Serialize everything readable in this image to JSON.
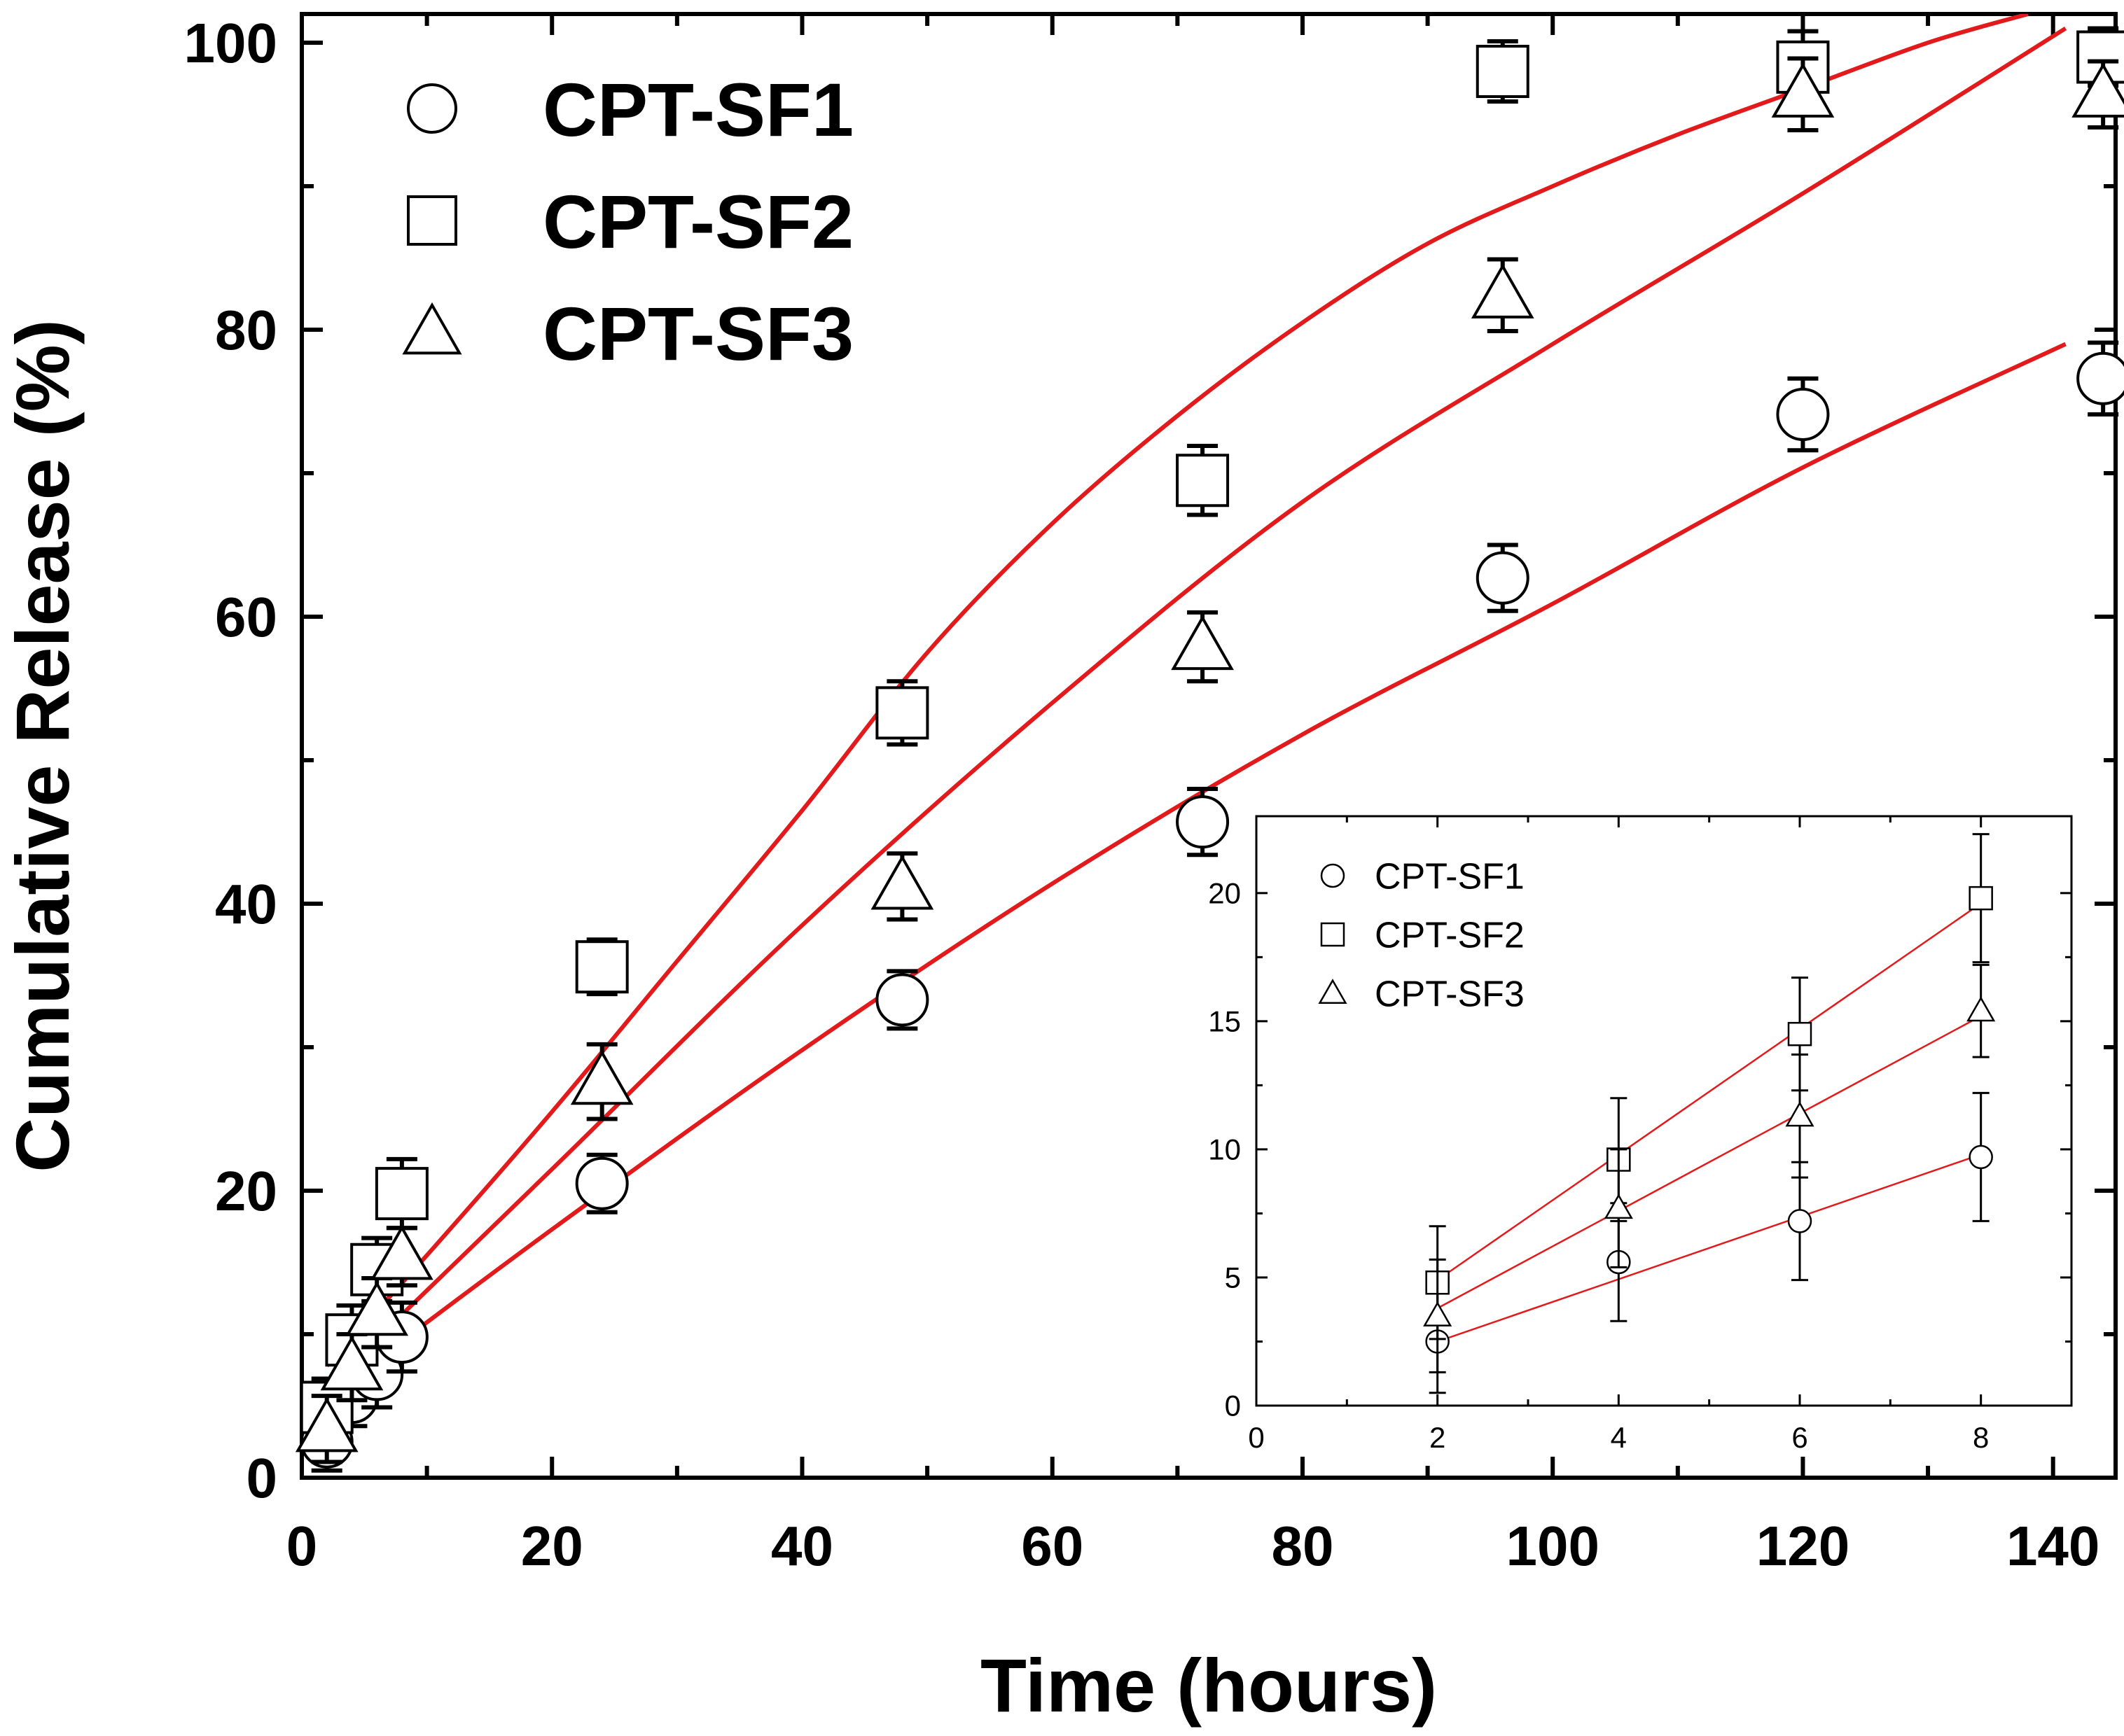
{
  "chart_data": [
    {
      "type": "scatter",
      "role": "main",
      "title": "",
      "xlabel": "Time (hours)",
      "ylabel": "Cumulative Release (%)",
      "xlim": [
        0,
        145
      ],
      "ylim": [
        0,
        102
      ],
      "xticks": [
        "0",
        "20",
        "40",
        "60",
        "80",
        "100",
        "120",
        "140"
      ],
      "yticks": [
        "0",
        "20",
        "40",
        "60",
        "80",
        "100"
      ],
      "xtick_values": [
        0,
        20,
        40,
        60,
        80,
        100,
        120,
        140
      ],
      "ytick_values": [
        0,
        20,
        40,
        60,
        80,
        100
      ],
      "legend_position": "top-left",
      "fit_line_color": "#e31a1c",
      "series": [
        {
          "name": "CPT-SF1",
          "marker": "circle",
          "x": [
            2,
            4,
            6,
            8,
            24,
            48,
            72,
            96,
            120,
            144
          ],
          "y": [
            2.5,
            5.6,
            7.2,
            9.8,
            20.5,
            33.3,
            45.7,
            62.7,
            74.1,
            76.6
          ],
          "err": [
            2,
            2,
            2.3,
            2.4,
            2,
            2,
            2.3,
            2.3,
            2.5,
            2.5
          ],
          "fit": [
            [
              2,
              5.6
            ],
            [
              20,
              17.3
            ],
            [
              40,
              29.8
            ],
            [
              60,
              41.4
            ],
            [
              80,
              51.8
            ],
            [
              100,
              60.9
            ],
            [
              120,
              70.4
            ],
            [
              141,
              79
            ]
          ]
        },
        {
          "name": "CPT-SF2",
          "marker": "square",
          "x": [
            2,
            4,
            6,
            8,
            24,
            48,
            72,
            96,
            120,
            144
          ],
          "y": [
            4.9,
            9.6,
            14.5,
            19.8,
            35.6,
            53.3,
            69.5,
            98,
            98.3,
            99
          ],
          "err": [
            2,
            2.4,
            2.2,
            2.4,
            1.9,
            2.2,
            2.4,
            2.1,
            2.5,
            2
          ],
          "fit": [
            [
              2,
              7.8
            ],
            [
              10,
              15.5
            ],
            [
              20,
              25.5
            ],
            [
              30,
              36
            ],
            [
              40,
              46.5
            ],
            [
              50,
              57.5
            ],
            [
              60,
              66.5
            ],
            [
              70,
              74
            ],
            [
              80,
              80.5
            ],
            [
              90,
              86
            ],
            [
              100,
              90
            ],
            [
              110,
              93.6
            ],
            [
              120,
              96.8
            ],
            [
              130,
              100
            ],
            [
              138,
              102
            ]
          ]
        },
        {
          "name": "CPT-SF3",
          "marker": "triangle",
          "x": [
            2,
            4,
            6,
            8,
            24,
            48,
            72,
            96,
            120,
            144
          ],
          "y": [
            3.4,
            7.7,
            11.5,
            15.4,
            27.6,
            41.2,
            57.9,
            82.4,
            96.4,
            96.4
          ],
          "err": [
            2.3,
            2.3,
            2.4,
            2,
            2.6,
            2.3,
            2.4,
            2.5,
            2.5,
            2.3
          ],
          "fit": [
            [
              2,
              6.3
            ],
            [
              20,
              21.5
            ],
            [
              40,
              38.5
            ],
            [
              60,
              54
            ],
            [
              80,
              68
            ],
            [
              100,
              79
            ],
            [
              120,
              89.5
            ],
            [
              141,
              101
            ]
          ]
        }
      ]
    },
    {
      "type": "scatter",
      "role": "inset",
      "position": "bottom-right",
      "xlim": [
        0,
        9
      ],
      "ylim": [
        0,
        23
      ],
      "xticks": [
        "0",
        "2",
        "4",
        "6",
        "8"
      ],
      "yticks": [
        "0",
        "5",
        "10",
        "15",
        "20"
      ],
      "xtick_values": [
        0,
        2,
        4,
        6,
        8
      ],
      "ytick_values": [
        0,
        5,
        10,
        15,
        20
      ],
      "legend_position": "top-left",
      "series": [
        {
          "name": "CPT-SF1",
          "marker": "circle",
          "x": [
            2,
            4,
            6,
            8
          ],
          "y": [
            2.5,
            5.6,
            7.2,
            9.7
          ],
          "err": [
            2,
            2.3,
            2.3,
            2.5
          ],
          "fit": [
            [
              2,
              2.5
            ],
            [
              8,
              9.8
            ]
          ]
        },
        {
          "name": "CPT-SF2",
          "marker": "square",
          "x": [
            2,
            4,
            6,
            8
          ],
          "y": [
            4.8,
            9.6,
            14.5,
            19.8
          ],
          "err": [
            2.2,
            2.4,
            2.2,
            2.5
          ],
          "fit": [
            [
              2,
              4.9
            ],
            [
              8,
              19.6
            ]
          ]
        },
        {
          "name": "CPT-SF3",
          "marker": "triangle",
          "x": [
            2,
            4,
            6,
            8
          ],
          "y": [
            3.5,
            7.7,
            11.3,
            15.4
          ],
          "err": [
            2.2,
            2.3,
            2.4,
            1.8
          ],
          "fit": [
            [
              2,
              3.8
            ],
            [
              8,
              15.2
            ]
          ]
        }
      ]
    }
  ]
}
